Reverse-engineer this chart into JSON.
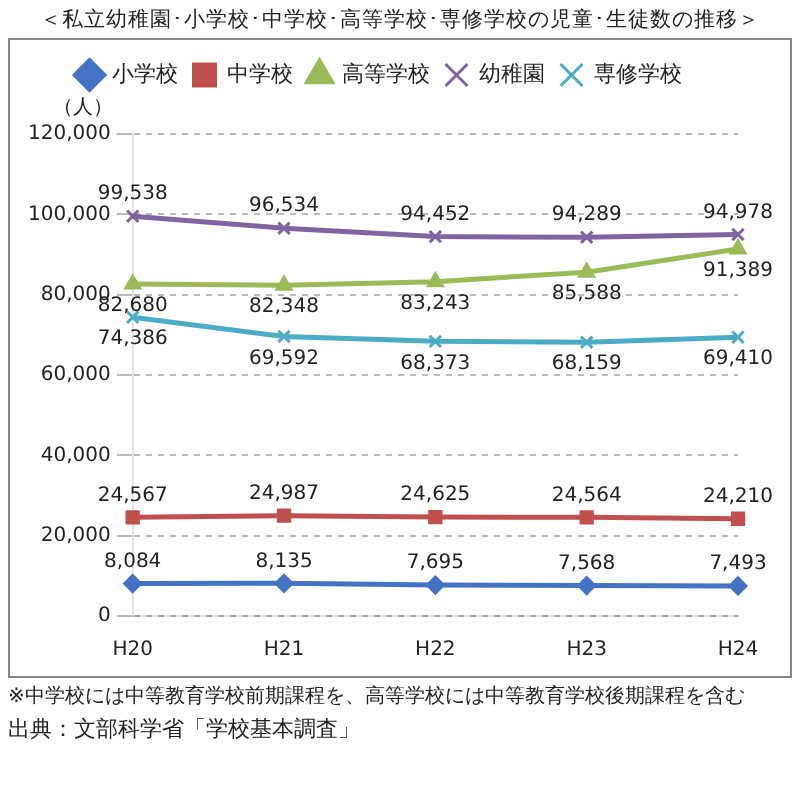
{
  "chart_data": {
    "type": "line",
    "title": "＜私立幼稚園･小学校･中学校･高等学校･専修学校の児童･生徒数の推移＞",
    "ylabel": "（人）",
    "categories": [
      "H20",
      "H21",
      "H22",
      "H23",
      "H24"
    ],
    "series": [
      {
        "name": "小学校",
        "color": "#4472c4",
        "marker": "diamond",
        "values": [
          8084,
          8135,
          7695,
          7568,
          7493
        ],
        "value_labels": [
          "8,084",
          "8,135",
          "7,695",
          "7,568",
          "7,493"
        ]
      },
      {
        "name": "中学校",
        "color": "#c0504d",
        "marker": "square",
        "values": [
          24567,
          24987,
          24625,
          24564,
          24210
        ],
        "value_labels": [
          "24,567",
          "24,987",
          "24,625",
          "24,564",
          "24,210"
        ]
      },
      {
        "name": "高等学校",
        "color": "#9bbb59",
        "marker": "triangle",
        "values": [
          82680,
          82348,
          83243,
          85588,
          91389
        ],
        "value_labels": [
          "82,680",
          "82,348",
          "83,243",
          "85,588",
          "91,389"
        ]
      },
      {
        "name": "幼稚園",
        "color": "#8064a2",
        "marker": "cross",
        "values": [
          99538,
          96534,
          94452,
          94289,
          94978
        ],
        "value_labels": [
          "99,538",
          "96,534",
          "94,452",
          "94,289",
          "94,978"
        ]
      },
      {
        "name": "専修学校",
        "color": "#4bacc6",
        "marker": "cross",
        "values": [
          74386,
          69592,
          68373,
          68159,
          69410
        ],
        "value_labels": [
          "74,386",
          "69,592",
          "68,373",
          "68,159",
          "69,410"
        ]
      }
    ],
    "ylim": [
      0,
      120000
    ],
    "yticks": [
      {
        "value": 0,
        "label": "0"
      },
      {
        "value": 20000,
        "label": "20,000"
      },
      {
        "value": 40000,
        "label": "40,000"
      },
      {
        "value": 60000,
        "label": "60,000"
      },
      {
        "value": 80000,
        "label": "80,000"
      },
      {
        "value": 100000,
        "label": "100,000"
      },
      {
        "value": 120000,
        "label": "120,000"
      }
    ],
    "grid": "y",
    "legend": "top",
    "annotations": [
      "※中学校には中等教育学校前期課程を、高等学校には中等教育学校後期課程を含む",
      "出典：文部科学省「学校基本調査」"
    ]
  }
}
